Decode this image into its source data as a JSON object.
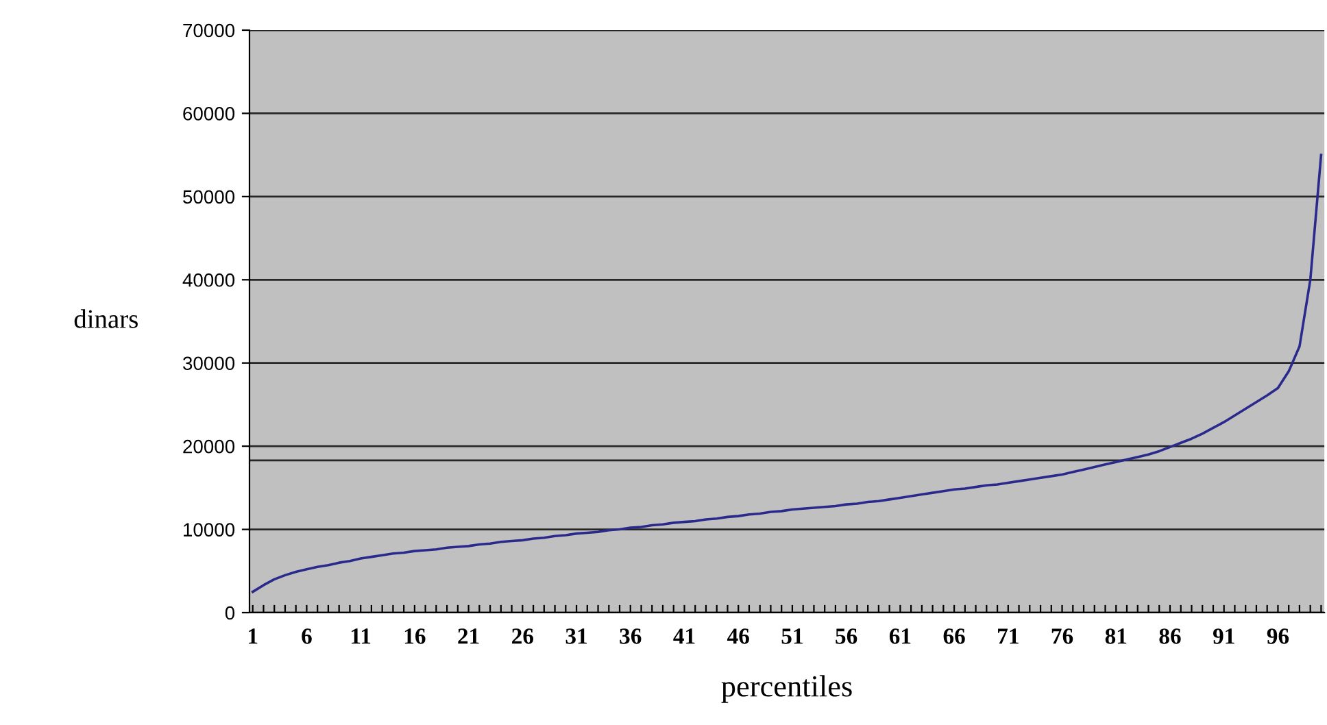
{
  "chart_data": {
    "type": "line",
    "xlabel": "percentiles",
    "ylabel": "dinars",
    "categories": [
      "1",
      null,
      null,
      null,
      null,
      "6",
      null,
      null,
      null,
      null,
      "11",
      null,
      null,
      null,
      null,
      "16",
      null,
      null,
      null,
      null,
      "21",
      null,
      null,
      null,
      null,
      "26",
      null,
      null,
      null,
      null,
      "31",
      null,
      null,
      null,
      null,
      "36",
      null,
      null,
      null,
      null,
      "41",
      null,
      null,
      null,
      null,
      "46",
      null,
      null,
      null,
      null,
      "51",
      null,
      null,
      null,
      null,
      "56",
      null,
      null,
      null,
      null,
      "61",
      null,
      null,
      null,
      null,
      "66",
      null,
      null,
      null,
      null,
      "71",
      null,
      null,
      null,
      null,
      "76",
      null,
      null,
      null,
      null,
      "81",
      null,
      null,
      null,
      null,
      "86",
      null,
      null,
      null,
      null,
      "91",
      null,
      null,
      null,
      null,
      "96",
      null,
      null,
      null,
      null
    ],
    "series": [
      {
        "color": "#2a2a8c",
        "values": [
          2500,
          3300,
          4000,
          4500,
          4900,
          5200,
          5500,
          5700,
          6000,
          6200,
          6500,
          6700,
          6900,
          7100,
          7200,
          7400,
          7500,
          7600,
          7800,
          7900,
          8000,
          8200,
          8300,
          8500,
          8600,
          8700,
          8900,
          9000,
          9200,
          9300,
          9500,
          9600,
          9700,
          9900,
          10000,
          10200,
          10300,
          10500,
          10600,
          10800,
          10900,
          11000,
          11200,
          11300,
          11500,
          11600,
          11800,
          11900,
          12100,
          12200,
          12400,
          12500,
          12600,
          12700,
          12800,
          13000,
          13100,
          13300,
          13400,
          13600,
          13800,
          14000,
          14200,
          14400,
          14600,
          14800,
          14900,
          15100,
          15300,
          15400,
          15600,
          15800,
          16000,
          16200,
          16400,
          16600,
          16900,
          17200,
          17500,
          17800,
          18100,
          18400,
          18700,
          19000,
          19400,
          19900,
          20400,
          20900,
          21500,
          22200,
          22900,
          23700,
          24500,
          25300,
          26100,
          27000,
          29000,
          32000,
          40000,
          55000
        ]
      }
    ],
    "ylim": [
      0,
      70000
    ],
    "yticks": [
      0,
      10000,
      20000,
      30000,
      40000,
      50000,
      60000,
      70000
    ],
    "grid": "y",
    "ref_lines": [
      {
        "axis": "y",
        "value": 18300,
        "color": "#000000"
      }
    ],
    "marker": "none",
    "line_style": "solid"
  }
}
